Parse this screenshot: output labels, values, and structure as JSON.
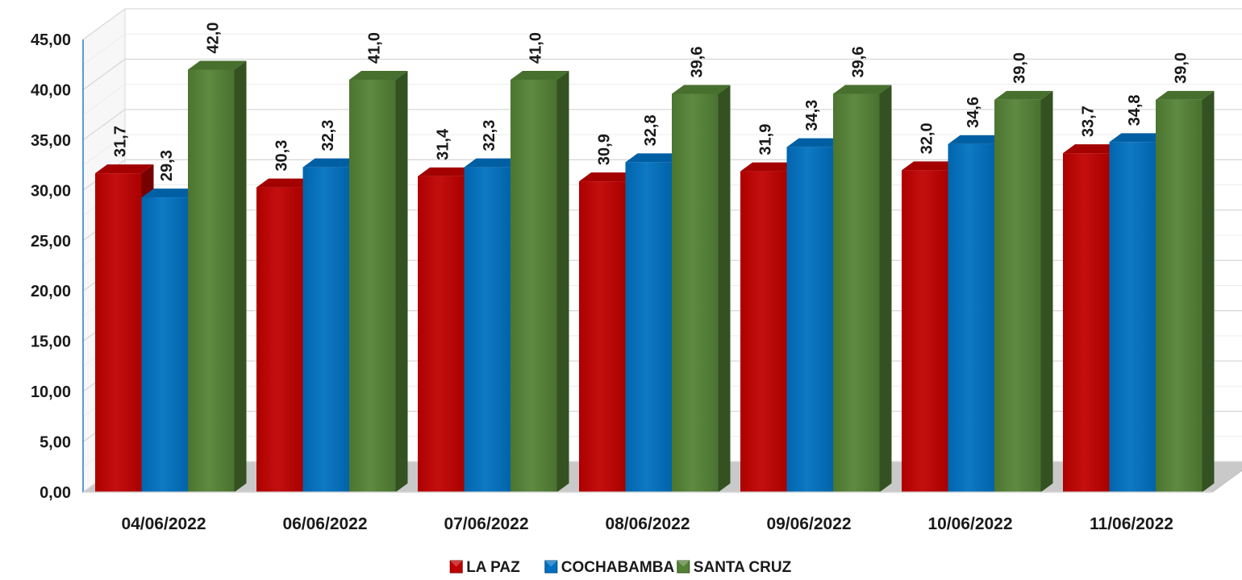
{
  "chart_data": {
    "type": "bar",
    "categories": [
      "04/06/2022",
      "06/06/2022",
      "07/06/2022",
      "08/06/2022",
      "09/06/2022",
      "10/06/2022",
      "11/06/2022"
    ],
    "series": [
      {
        "name": "LA PAZ",
        "color": "#c00000",
        "values": [
          31.7,
          30.3,
          31.4,
          30.9,
          31.9,
          32.0,
          33.7
        ],
        "labels": [
          "31,7",
          "30,3",
          "31,4",
          "30,9",
          "31,9",
          "32,0",
          "33,7"
        ]
      },
      {
        "name": "COCHABAMBA",
        "color": "#0070c0",
        "values": [
          29.3,
          32.3,
          32.3,
          32.8,
          34.3,
          34.6,
          34.8
        ],
        "labels": [
          "29,3",
          "32,3",
          "32,3",
          "32,8",
          "34,3",
          "34,6",
          "34,8"
        ]
      },
      {
        "name": "SANTA CRUZ",
        "color": "#548235",
        "values": [
          42.0,
          41.0,
          41.0,
          39.6,
          39.6,
          39.0,
          39.0
        ],
        "labels": [
          "42,0",
          "41,0",
          "41,0",
          "39,6",
          "39,6",
          "39,0",
          "39,0"
        ]
      }
    ],
    "yticks": [
      "0,00",
      "5,00",
      "10,00",
      "15,00",
      "20,00",
      "25,00",
      "30,00",
      "35,00",
      "40,00",
      "45,00"
    ],
    "ylim": [
      0,
      45
    ],
    "grid": true,
    "legend_position": "bottom",
    "three_d": true
  }
}
